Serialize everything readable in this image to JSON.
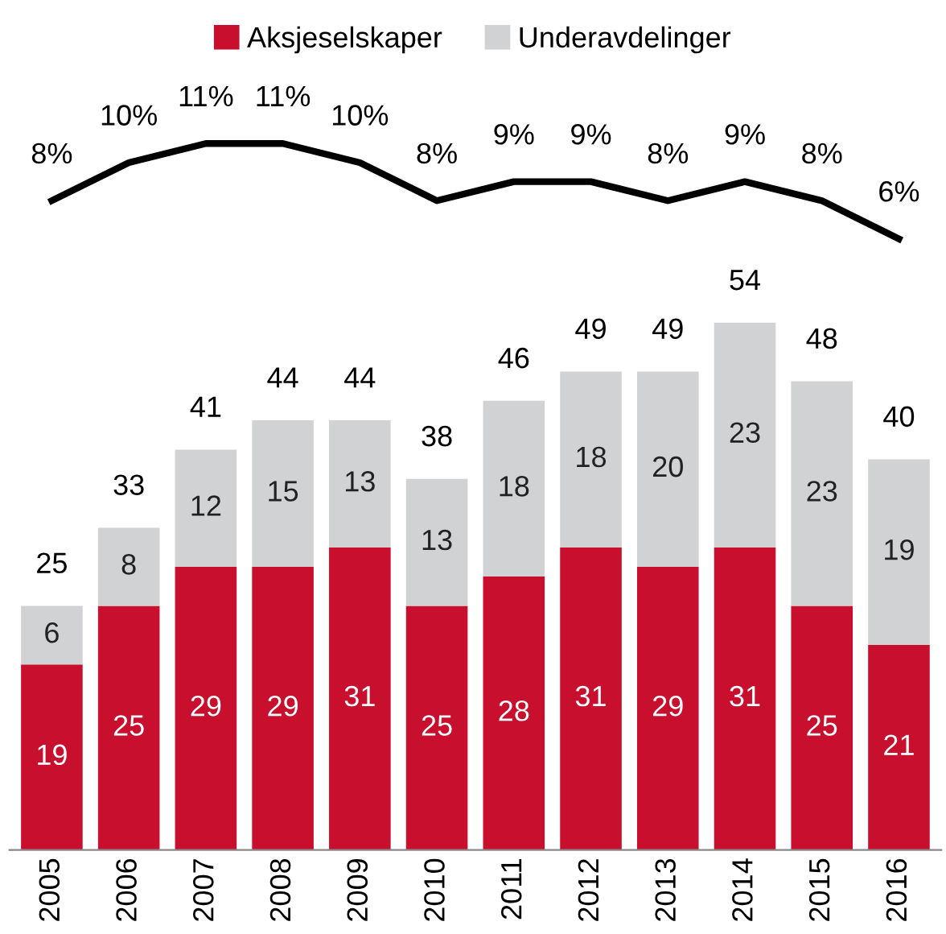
{
  "chart_data": [
    {
      "type": "line",
      "categories": [
        "2005",
        "2006",
        "2007",
        "2008",
        "2009",
        "2010",
        "2011",
        "2012",
        "2013",
        "2014",
        "2015",
        "2016"
      ],
      "series": [
        {
          "color": "#000000",
          "values": [
            8,
            10,
            11,
            11,
            10,
            8,
            9,
            9,
            8,
            9,
            8,
            6
          ],
          "value_labels": [
            "8%",
            "10%",
            "11%",
            "11%",
            "10%",
            "8%",
            "9%",
            "9%",
            "8%",
            "9%",
            "8%",
            "6%"
          ]
        }
      ],
      "tick_labels": false,
      "marker": "none",
      "line_style": "solid"
    },
    {
      "type": "bar",
      "stacked": true,
      "categories": [
        "2005",
        "2006",
        "2007",
        "2008",
        "2009",
        "2010",
        "2011",
        "2012",
        "2013",
        "2014",
        "2015",
        "2016"
      ],
      "series": [
        {
          "name": "Aksjeselskaper",
          "color": "#c8102e",
          "values": [
            19,
            25,
            29,
            29,
            31,
            25,
            28,
            31,
            29,
            31,
            25,
            21
          ]
        },
        {
          "name": "Underavdelinger",
          "color": "#d1d2d4",
          "values": [
            6,
            8,
            12,
            15,
            13,
            13,
            18,
            18,
            20,
            23,
            23,
            19
          ]
        }
      ],
      "data_labels": true,
      "totals": [
        "25",
        "33",
        "41",
        "44",
        "44",
        "38",
        "46",
        "49",
        "49",
        "54",
        "48",
        "40"
      ],
      "tick_labels": "x",
      "legend": "top"
    }
  ]
}
